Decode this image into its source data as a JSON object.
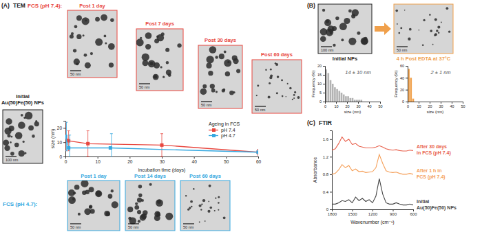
{
  "chart_data": [
    {
      "type": "line",
      "y_label": "size (nm)",
      "x_label": "incubation time (days)",
      "legend_title": "Ageing in FCS",
      "legend": "top-right",
      "marker": "square",
      "xlim": [
        0,
        60
      ],
      "xticks": [
        0,
        10,
        20,
        30,
        40,
        50,
        60
      ],
      "ylim": [
        0,
        25
      ],
      "yticks": [
        0,
        10,
        20
      ],
      "series": [
        {
          "name": "pH 7.4",
          "color": "#e8473f",
          "x": [
            0,
            1,
            7,
            30,
            60
          ],
          "values": [
            14,
            11,
            9,
            8,
            3
          ],
          "errors": [
            10,
            7,
            9,
            8,
            2
          ]
        },
        {
          "name": "pH 4.7",
          "color": "#35a8e0",
          "x": [
            0,
            1,
            14,
            60
          ],
          "values": [
            14,
            6,
            6,
            3
          ],
          "errors": [
            10,
            9,
            10,
            2
          ]
        }
      ]
    },
    {
      "type": "histogram",
      "x_label": "size (nm)",
      "y_label": "Frequency (%)",
      "annotation": "14 ± 10 nm",
      "color": "#b3b3b3",
      "bins": [
        0,
        2,
        4,
        6,
        8,
        10,
        12,
        14,
        16,
        18,
        20,
        22,
        24,
        26,
        28,
        30,
        32,
        34,
        36,
        38,
        40,
        42,
        44,
        46,
        48,
        50
      ],
      "values": [
        18,
        16,
        12,
        10,
        8,
        7,
        6,
        5,
        4,
        3,
        3,
        2,
        2,
        1,
        1,
        1,
        1,
        0,
        0,
        0,
        0,
        0,
        0,
        0,
        0
      ],
      "xlim": [
        0,
        50
      ],
      "xticks": [
        0,
        10,
        20,
        30,
        40,
        50
      ],
      "ylim": [
        0,
        20
      ],
      "yticks": [
        0,
        5,
        10,
        15,
        20
      ]
    },
    {
      "type": "histogram",
      "x_label": "size (nm)",
      "y_label": "Frequency (%)",
      "annotation": "2 ± 1 nm",
      "color": "#f0a04b",
      "bins": [
        0,
        2,
        4,
        6,
        8,
        10,
        12,
        14,
        16,
        18,
        20,
        22,
        24,
        26,
        28,
        30,
        32,
        34,
        36,
        38,
        40,
        42,
        44,
        46,
        48,
        50
      ],
      "values": [
        55,
        40,
        5,
        0,
        0,
        0,
        0,
        0,
        0,
        0,
        0,
        0,
        0,
        0,
        0,
        0,
        0,
        0,
        0,
        0,
        0,
        0,
        0,
        0,
        0
      ],
      "xlim": [
        0,
        50
      ],
      "xticks": [
        0,
        10,
        20,
        30,
        40,
        50
      ],
      "ylim": [
        0,
        60
      ],
      "yticks": [
        0,
        20,
        40,
        60
      ]
    },
    {
      "type": "line",
      "x_label": "Wavenumber (cm⁻¹)",
      "y_label": "Absorbance",
      "legend": "right",
      "xlim": [
        1800,
        600
      ],
      "xticks": [
        1800,
        1500,
        1200,
        900,
        600
      ],
      "ylim": [
        0,
        1.8
      ],
      "yticks": [
        0,
        0.4,
        0.8,
        1.2,
        1.6
      ],
      "x": [
        1800,
        1750,
        1700,
        1650,
        1600,
        1550,
        1500,
        1450,
        1400,
        1350,
        1300,
        1250,
        1200,
        1150,
        1100,
        1050,
        1000,
        950,
        900,
        850,
        800,
        750,
        700,
        650,
        600
      ],
      "series": [
        {
          "name": "After 30 days in FCS (pH 7.4)",
          "color": "#e8604c",
          "values": [
            1.35,
            1.38,
            1.5,
            1.65,
            1.55,
            1.6,
            1.48,
            1.5,
            1.44,
            1.42,
            1.4,
            1.4,
            1.4,
            1.42,
            1.45,
            1.42,
            1.38,
            1.36,
            1.35,
            1.36,
            1.34,
            1.33,
            1.33,
            1.35,
            1.34
          ]
        },
        {
          "name": "After 1 h in FCS (pH 7.4)",
          "color": "#f5a05a",
          "values": [
            0.8,
            0.82,
            0.9,
            1.02,
            0.95,
            1.0,
            0.88,
            0.92,
            0.86,
            0.87,
            0.84,
            0.85,
            0.86,
            0.95,
            1.25,
            1.05,
            0.88,
            0.85,
            0.84,
            0.85,
            0.82,
            0.8,
            0.8,
            0.82,
            0.8
          ]
        },
        {
          "name": "Initial Au(50)Fe(50) NPs",
          "color": "#444444",
          "values": [
            0.12,
            0.12,
            0.15,
            0.2,
            0.18,
            0.22,
            0.15,
            0.28,
            0.2,
            0.25,
            0.18,
            0.22,
            0.15,
            0.3,
            0.7,
            0.35,
            0.15,
            0.12,
            0.12,
            0.15,
            0.12,
            0.1,
            0.1,
            0.12,
            0.1
          ]
        }
      ]
    }
  ],
  "figure": {
    "panel_a": {
      "label": "(A)",
      "title": "TEM"
    },
    "panel_b": {
      "label": "(B)"
    },
    "panel_c": {
      "label": "(C)",
      "title": "FTIR"
    },
    "groups": [
      {
        "text": "FCS (pH 7.4):",
        "color": "#e8473f"
      },
      {
        "text": "FCS (pH 4.7):",
        "color": "#35a8e0"
      }
    ],
    "images": [
      {
        "label": "Initial Au(50)Fe(50) NPs",
        "scale_bar": "100 nm",
        "color": "#222222"
      },
      {
        "label": "Post 1 day",
        "scale_bar": "50 nm",
        "color": "#e8473f"
      },
      {
        "label": "Post 7 days",
        "scale_bar": "50 nm",
        "color": "#e8473f"
      },
      {
        "label": "Post 30 days",
        "scale_bar": "50 nm",
        "color": "#e8473f"
      },
      {
        "label": "Post 60 days",
        "scale_bar": "50 nm",
        "color": "#e8473f"
      },
      {
        "label": "Post 1 day",
        "scale_bar": "50 nm",
        "color": "#35a8e0"
      },
      {
        "label": "Post 14 days",
        "scale_bar": "50 nm",
        "color": "#35a8e0"
      },
      {
        "label": "Post 60 days",
        "scale_bar": "50 nm",
        "color": "#35a8e0"
      },
      {
        "label": "Initial NPs",
        "scale_bar": "100 nm",
        "color": "#222222"
      },
      {
        "label": "4 h Post EDTA at 37°C",
        "scale_bar": "50 nm",
        "color": "#f0a04b"
      }
    ]
  }
}
